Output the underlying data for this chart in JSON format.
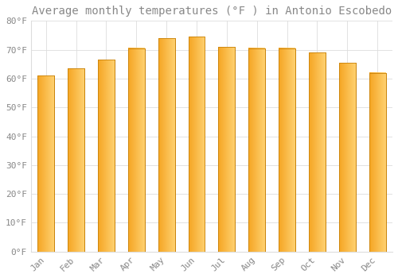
{
  "title": "Average monthly temperatures (°F ) in Antonio Escobedo",
  "months": [
    "Jan",
    "Feb",
    "Mar",
    "Apr",
    "May",
    "Jun",
    "Jul",
    "Aug",
    "Sep",
    "Oct",
    "Nov",
    "Dec"
  ],
  "values": [
    61.0,
    63.5,
    66.5,
    70.5,
    74.0,
    74.5,
    71.0,
    70.5,
    70.5,
    69.0,
    65.5,
    62.0
  ],
  "bar_color_left": "#F5A623",
  "bar_color_right": "#FFD070",
  "bar_edge_color": "#C8820A",
  "background_color": "#FFFFFF",
  "grid_color": "#DDDDDD",
  "ylim": [
    0,
    80
  ],
  "yticks": [
    0,
    10,
    20,
    30,
    40,
    50,
    60,
    70,
    80
  ],
  "ytick_labels": [
    "0°F",
    "10°F",
    "20°F",
    "30°F",
    "40°F",
    "50°F",
    "60°F",
    "70°F",
    "80°F"
  ],
  "title_fontsize": 10,
  "tick_fontsize": 8,
  "font_color": "#888888",
  "font_family": "monospace",
  "bar_width": 0.55
}
